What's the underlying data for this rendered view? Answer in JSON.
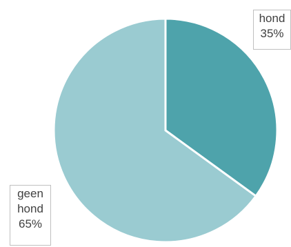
{
  "chart_data": {
    "type": "pie",
    "categories": [
      "hond",
      "geen hond"
    ],
    "values": [
      35,
      65
    ],
    "labels": [
      {
        "name": "hond",
        "percent": "35%"
      },
      {
        "name": "geen hond",
        "percent": "65%"
      }
    ],
    "name_lines": [
      [
        "hond"
      ],
      [
        "geen",
        "hond"
      ]
    ],
    "colors": [
      "#4ea3ab",
      "#9acbd1"
    ],
    "start_angle": "12 o'clock, clockwise",
    "legend": "none"
  }
}
